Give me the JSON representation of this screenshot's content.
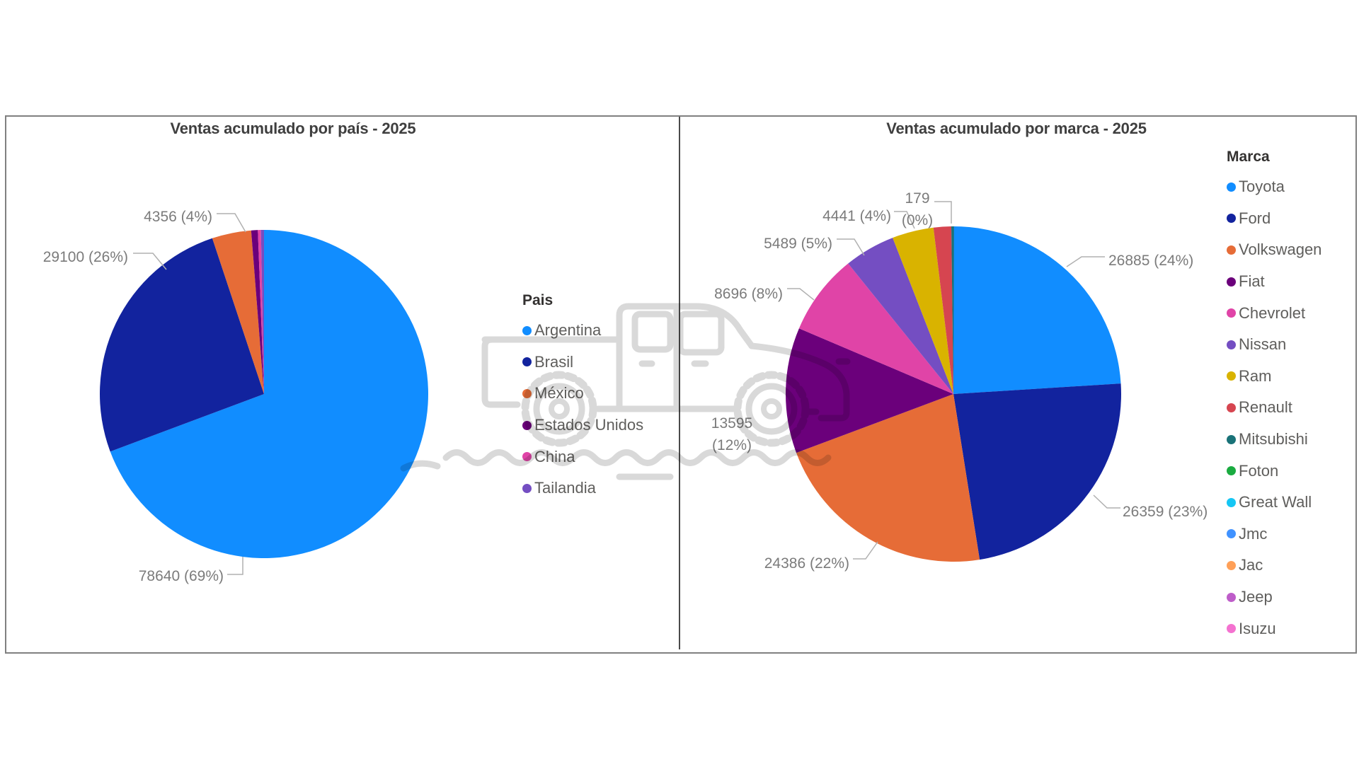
{
  "watermark": {
    "icon": "pickup-truck-watermark",
    "color": "#d9d9d9"
  },
  "panel_border_color": "#808080",
  "chart_data": [
    {
      "type": "pie",
      "title": "Ventas acumulado por país - 2025",
      "legend_title": "Pais",
      "legend_position": "right",
      "slices": [
        {
          "name": "Argentina",
          "value": 78640,
          "percent": "69%",
          "display_label": "78640 (69%)",
          "color": "#118DFF",
          "pct_draw": 69.3
        },
        {
          "name": "Brasil",
          "value": 29100,
          "percent": "26%",
          "display_label": "29100 (26%)",
          "color": "#12239E",
          "pct_draw": 25.6
        },
        {
          "name": "México",
          "value": 4356,
          "percent": "4%",
          "display_label": "4356 (4%)",
          "color": "#E66C37",
          "pct_draw": 3.85
        },
        {
          "name": "Estados Unidos",
          "value": null,
          "percent": null,
          "display_label": null,
          "color": "#6B007B",
          "pct_draw": 0.65
        },
        {
          "name": "China",
          "value": null,
          "percent": null,
          "display_label": null,
          "color": "#E044A7",
          "pct_draw": 0.3
        },
        {
          "name": "Tailandia",
          "value": null,
          "percent": null,
          "display_label": null,
          "color": "#744EC2",
          "pct_draw": 0.3
        }
      ]
    },
    {
      "type": "pie",
      "title": "Ventas acumulado por marca - 2025",
      "legend_title": "Marca",
      "legend_position": "right",
      "slices": [
        {
          "name": "Toyota",
          "value": 26885,
          "percent": "24%",
          "display_label": "26885 (24%)",
          "color": "#118DFF",
          "pct_draw": 24.0
        },
        {
          "name": "Ford",
          "value": 26359,
          "percent": "23%",
          "display_label": "26359 (23%)",
          "color": "#12239E",
          "pct_draw": 23.5
        },
        {
          "name": "Volkswagen",
          "value": 24386,
          "percent": "22%",
          "display_label": "24386 (22%)",
          "color": "#E66C37",
          "pct_draw": 21.8
        },
        {
          "name": "Fiat",
          "value": 13595,
          "percent": "12%",
          "display_label": "13595 (12%)",
          "lines": [
            "13595",
            "(12%)"
          ],
          "color": "#6B007B",
          "pct_draw": 12.1
        },
        {
          "name": "Chevrolet",
          "value": 8696,
          "percent": "8%",
          "display_label": "8696 (8%)",
          "color": "#E044A7",
          "pct_draw": 7.8
        },
        {
          "name": "Nissan",
          "value": 5489,
          "percent": "5%",
          "display_label": "5489 (5%)",
          "color": "#744EC2",
          "pct_draw": 4.9
        },
        {
          "name": "Ram",
          "value": 4441,
          "percent": "4%",
          "display_label": "4441 (4%)",
          "color": "#D9B300",
          "pct_draw": 4.0
        },
        {
          "name": "Renault",
          "value": null,
          "percent": null,
          "display_label": null,
          "color": "#D64550",
          "pct_draw": 1.7
        },
        {
          "name": "Mitsubishi",
          "value": 179,
          "percent": "0%",
          "display_label": "179 (0%)",
          "lines": [
            "179",
            "(0%)"
          ],
          "color": "#197278",
          "pct_draw": 0.25
        },
        {
          "name": "Foton",
          "value": null,
          "percent": null,
          "display_label": null,
          "color": "#1AAB40",
          "pct_draw": 0
        },
        {
          "name": "Great Wall",
          "value": null,
          "percent": null,
          "display_label": null,
          "color": "#15C6F4",
          "pct_draw": 0
        },
        {
          "name": "Jmc",
          "value": null,
          "percent": null,
          "display_label": null,
          "color": "#4092FF",
          "pct_draw": 0
        },
        {
          "name": "Jac",
          "value": null,
          "percent": null,
          "display_label": null,
          "color": "#FFA058",
          "pct_draw": 0
        },
        {
          "name": "Jeep",
          "value": null,
          "percent": null,
          "display_label": null,
          "color": "#BE5DC9",
          "pct_draw": 0
        },
        {
          "name": "Isuzu",
          "value": null,
          "percent": null,
          "display_label": null,
          "color": "#F472D0",
          "pct_draw": 0
        }
      ]
    }
  ]
}
